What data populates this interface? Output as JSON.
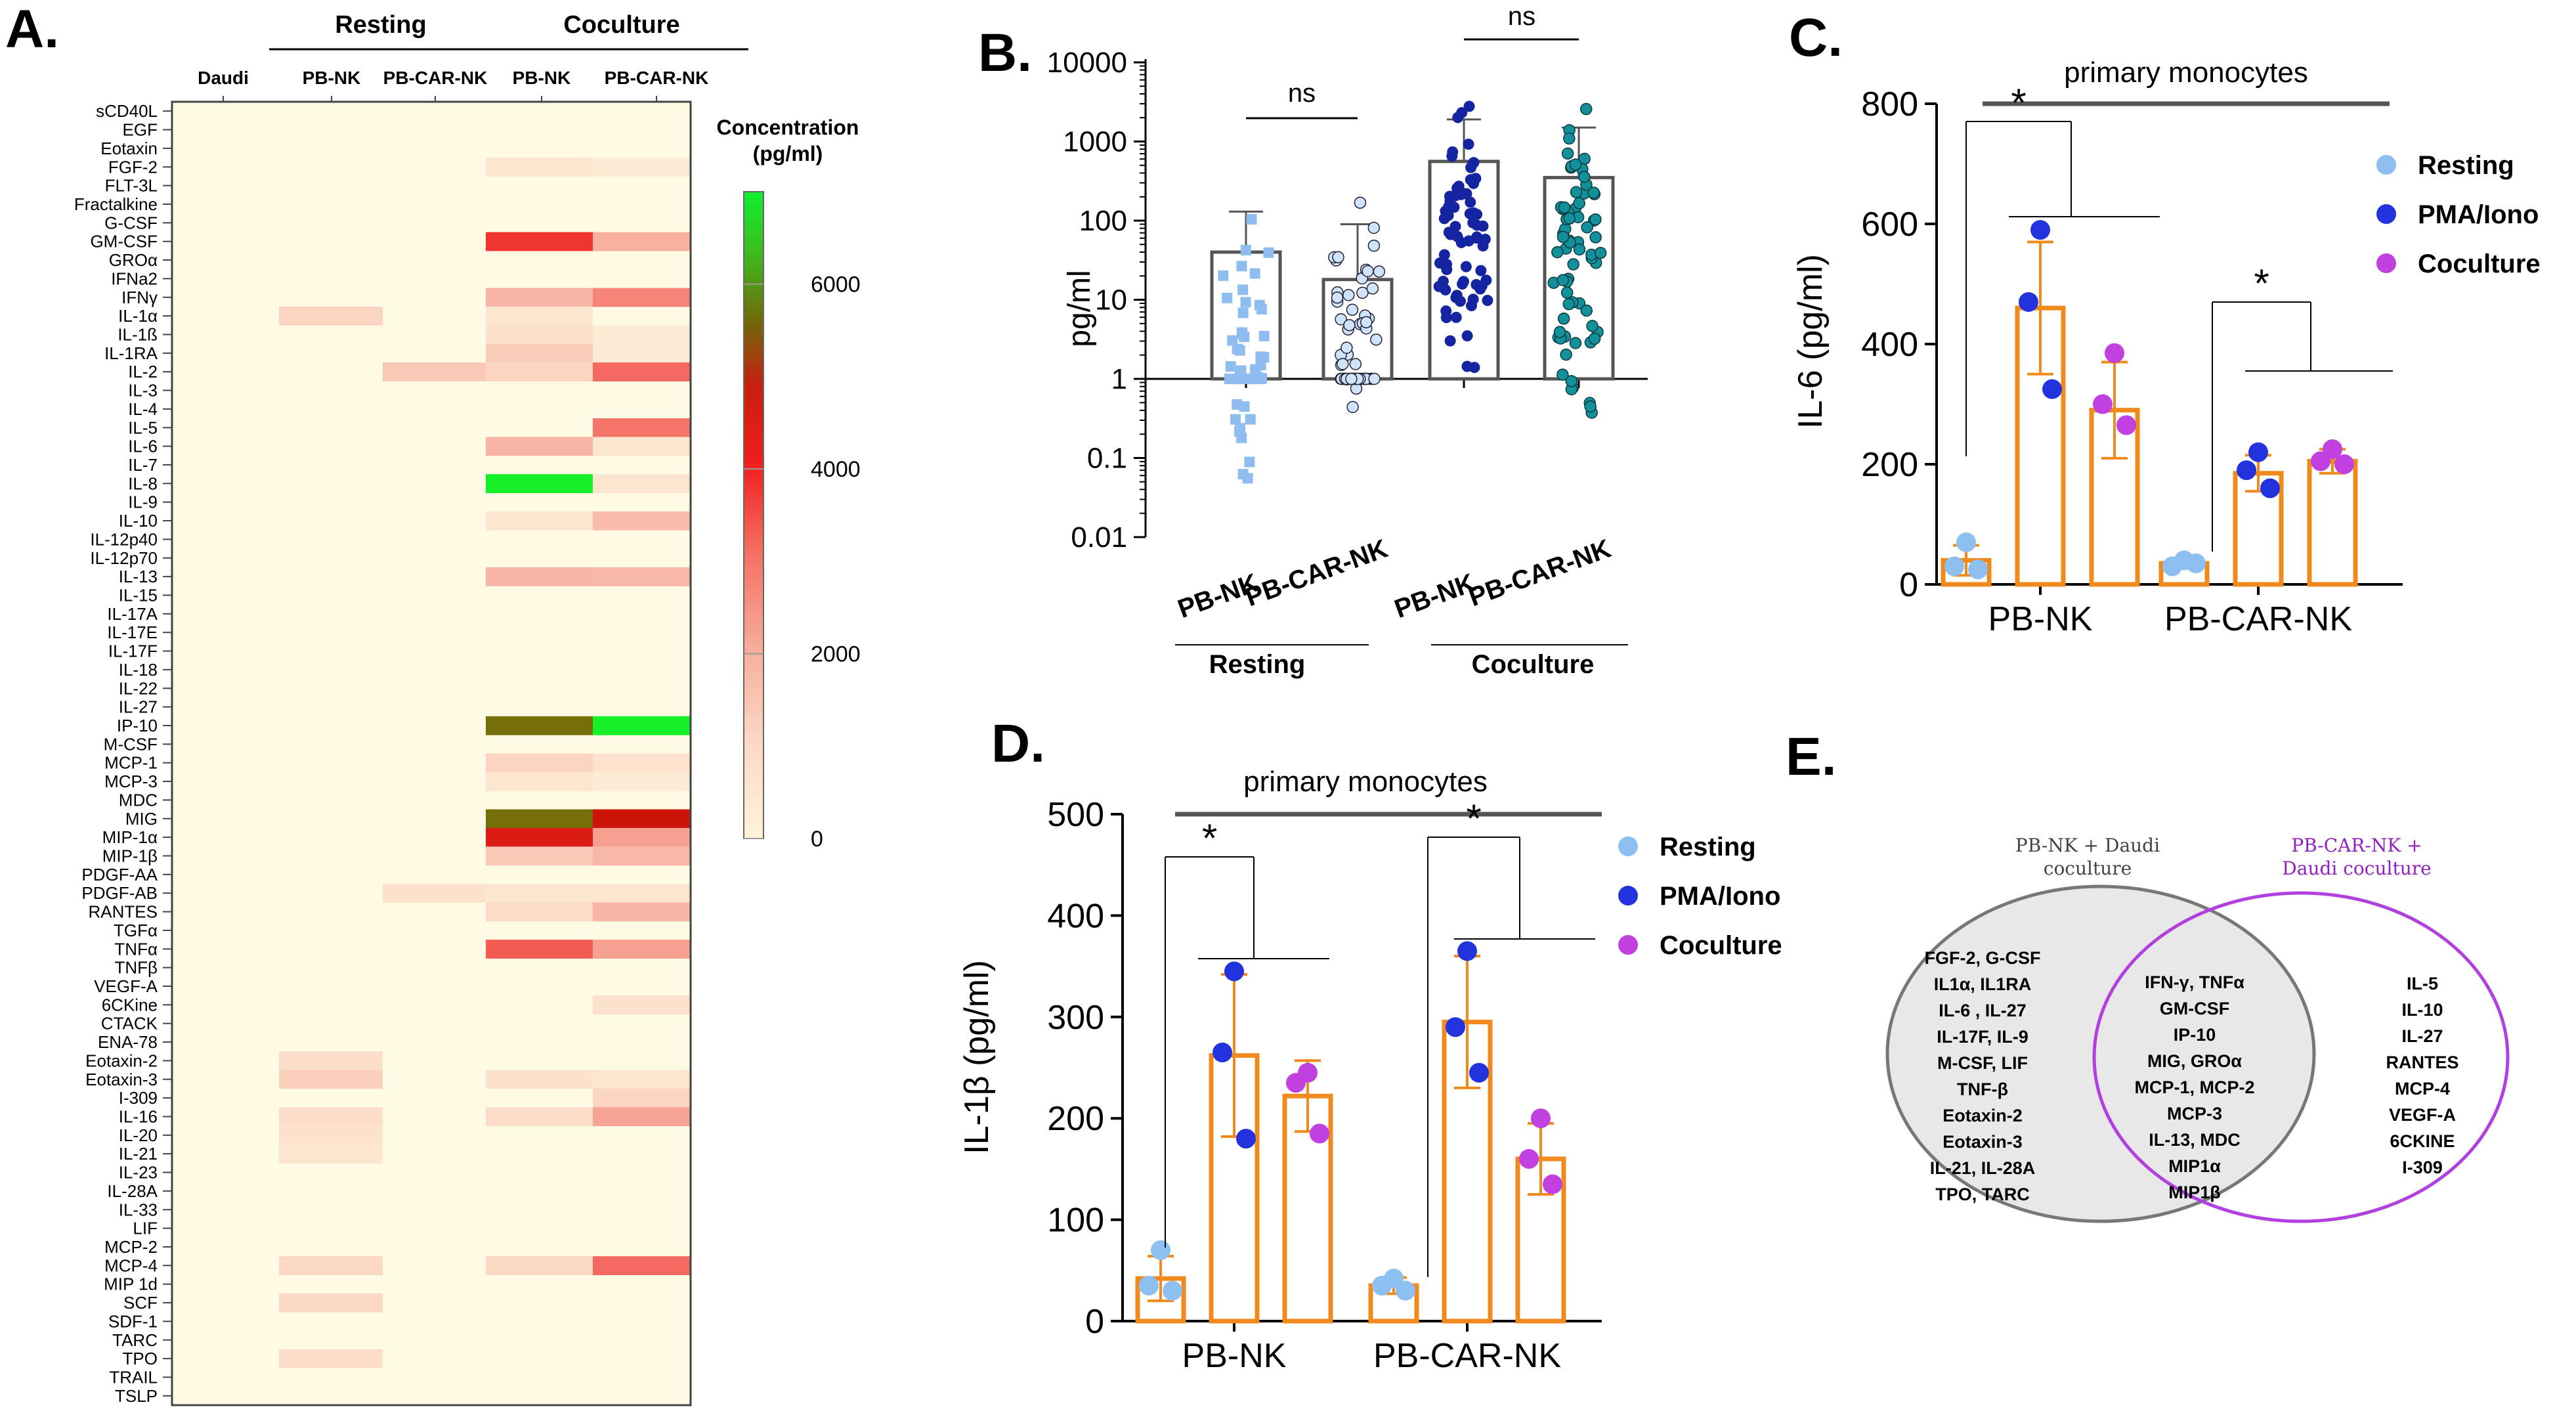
{
  "panel_labels": {
    "a": "A.",
    "b": "B.",
    "c": "C.",
    "d": "D.",
    "e": "E."
  },
  "colors": {
    "resting": "#8dbff0",
    "pma": "#2233dd",
    "coculture": "#c040e0",
    "bar": "#f08a1c",
    "scatter_rest": "#8fbdf0",
    "scatter_coc": "#1524a0",
    "scatter_coc_car": "#13909a",
    "venn_right": "#a020c8"
  },
  "chart_data": [
    {
      "type": "heatmap",
      "panel": "A.",
      "group_labels": [
        "Resting",
        "Coculture"
      ],
      "columns": [
        "Daudi",
        "PB-NK",
        "PB-CAR-NK",
        "PB-NK",
        "PB-CAR-NK"
      ],
      "rows": [
        "sCD40L",
        "EGF",
        "Eotaxin",
        "FGF-2",
        "FLT-3L",
        "Fractalkine",
        "G-CSF",
        "GM-CSF",
        "GROα",
        "IFNa2",
        "IFNγ",
        "IL-1α",
        "IL-1ß",
        "IL-1RA",
        "IL-2",
        "IL-3",
        "IL-4",
        "IL-5",
        "IL-6",
        "IL-7",
        "IL-8",
        "IL-9",
        "IL-10",
        "IL-12p40",
        "IL-12p70",
        "IL-13",
        "IL-15",
        "IL-17A",
        "IL-17E",
        "IL-17F",
        "IL-18",
        "IL-22",
        "IL-27",
        "IP-10",
        "M-CSF",
        "MCP-1",
        "MCP-3",
        "MDC",
        "MIG",
        "MIP-1α",
        "MIP-1β",
        "PDGF-AA",
        "PDGF-AB",
        "RANTES",
        "TGFα",
        "TNFα",
        "TNFβ",
        "VEGF-A",
        "6CKine",
        "CTACK",
        "ENA-78",
        "Eotaxin-2",
        "Eotaxin-3",
        "I-309",
        "IL-16",
        "IL-20",
        "IL-21",
        "IL-23",
        "IL-28A",
        "IL-33",
        "LIF",
        "MCP-2",
        "MCP-4",
        "MIP 1d",
        "SCF",
        "SDF-1",
        "TARC",
        "TPO",
        "TRAIL",
        "TSLP"
      ],
      "values": {
        "GM-CSF": [
          0,
          0,
          0,
          3800,
          1600
        ],
        "FGF-2": [
          0,
          0,
          0,
          300,
          200
        ],
        "IFNγ": [
          0,
          0,
          0,
          1500,
          2500
        ],
        "IL-1α": [
          0,
          700,
          0,
          300,
          0
        ],
        "IL-1ß": [
          0,
          0,
          0,
          400,
          200
        ],
        "IL-1RA": [
          0,
          0,
          0,
          900,
          200
        ],
        "IL-2": [
          0,
          0,
          1000,
          700,
          3000
        ],
        "IL-5": [
          0,
          0,
          0,
          0,
          2800
        ],
        "IL-6": [
          0,
          0,
          0,
          1500,
          300
        ],
        "IL-8": [
          0,
          0,
          0,
          7000,
          300
        ],
        "IL-10": [
          0,
          0,
          0,
          300,
          1300
        ],
        "IL-13": [
          0,
          0,
          0,
          1500,
          1400
        ],
        "IP-10": [
          0,
          0,
          0,
          5500,
          7000
        ],
        "MCP-1": [
          0,
          0,
          0,
          700,
          400
        ],
        "MCP-3": [
          0,
          0,
          0,
          300,
          200
        ],
        "MIG": [
          0,
          0,
          0,
          5500,
          4500
        ],
        "MIP-1α": [
          0,
          0,
          0,
          4300,
          2000
        ],
        "MIP-1β": [
          0,
          0,
          0,
          1000,
          1400
        ],
        "PDGF-AB": [
          0,
          0,
          400,
          300,
          300
        ],
        "RANTES": [
          0,
          0,
          0,
          500,
          1500
        ],
        "TNFα": [
          0,
          0,
          0,
          3200,
          2000
        ],
        "6CKine": [
          0,
          0,
          0,
          0,
          400
        ],
        "Eotaxin-2": [
          0,
          500,
          0,
          0,
          0
        ],
        "Eotaxin-3": [
          0,
          800,
          0,
          400,
          300
        ],
        "I-309": [
          0,
          0,
          0,
          0,
          700
        ],
        "IL-16": [
          0,
          500,
          0,
          500,
          1900
        ],
        "IL-20": [
          0,
          400,
          0,
          0,
          0
        ],
        "IL-21": [
          0,
          300,
          0,
          0,
          0
        ],
        "MCP-4": [
          0,
          600,
          0,
          600,
          3000
        ],
        "SCF": [
          0,
          600,
          0,
          0,
          0
        ],
        "TPO": [
          0,
          500,
          0,
          0,
          0
        ]
      },
      "colorbar": {
        "title": "Concentration (pg/ml)",
        "ticks": [
          0,
          2000,
          4000,
          6000
        ],
        "range": [
          0,
          7000
        ]
      }
    },
    {
      "type": "scatter",
      "panel": "B.",
      "yscale": "log",
      "ylabel": "pg/ml",
      "yticks": [
        "0.01",
        "0.1",
        "1",
        "10",
        "100",
        "1000",
        "10000"
      ],
      "categories": [
        "PB-NK",
        "PB-CAR-NK",
        "PB-NK",
        "PB-CAR-NK"
      ],
      "group_labels": [
        "Resting",
        "Coculture"
      ],
      "bar_means": [
        40,
        18,
        560,
        350
      ],
      "error_upper": [
        130,
        90,
        1900,
        1500
      ],
      "comparisons": [
        "ns",
        "ns"
      ]
    },
    {
      "type": "bar",
      "panel": "C.",
      "title": "primary monocytes",
      "ylabel": "IL-6 (pg/ml)",
      "ylim": [
        0,
        800
      ],
      "yticks": [
        "0",
        "200",
        "400",
        "600",
        "800"
      ],
      "categories": [
        "PB-NK",
        "PB-CAR-NK"
      ],
      "series": [
        {
          "name": "Resting",
          "values": [
            40,
            35
          ],
          "errors": [
            25,
            5
          ],
          "points": [
            [
              70,
              30,
              25
            ],
            [
              40,
              30,
              35
            ]
          ]
        },
        {
          "name": "PMA/Iono",
          "values": [
            460,
            185
          ],
          "errors": [
            110,
            30
          ],
          "points": [
            [
              590,
              470,
              325
            ],
            [
              220,
              190,
              160
            ]
          ]
        },
        {
          "name": "Coculture",
          "values": [
            290,
            205
          ],
          "errors": [
            80,
            20
          ],
          "points": [
            [
              385,
              300,
              265
            ],
            [
              225,
              205,
              200
            ]
          ]
        }
      ],
      "significance": [
        "*",
        "*"
      ]
    },
    {
      "type": "bar",
      "panel": "D.",
      "title": "primary monocytes",
      "ylabel": "IL-1β (pg/ml)",
      "ylim": [
        0,
        500
      ],
      "yticks": [
        "0",
        "100",
        "200",
        "300",
        "400",
        "500"
      ],
      "categories": [
        "PB-NK",
        "PB-CAR-NK"
      ],
      "series": [
        {
          "name": "Resting",
          "values": [
            42,
            35
          ],
          "errors": [
            22,
            8
          ],
          "points": [
            [
              70,
              35,
              30
            ],
            [
              42,
              35,
              30
            ]
          ]
        },
        {
          "name": "PMA/Iono",
          "values": [
            262,
            295
          ],
          "errors": [
            80,
            65
          ],
          "points": [
            [
              345,
              265,
              180
            ],
            [
              365,
              290,
              245
            ]
          ]
        },
        {
          "name": "Coculture",
          "values": [
            222,
            160
          ],
          "errors": [
            35,
            35
          ],
          "points": [
            [
              245,
              235,
              185
            ],
            [
              200,
              160,
              135
            ]
          ]
        }
      ],
      "significance": [
        "*",
        "*"
      ]
    }
  ],
  "venn": {
    "left_title": [
      "PB-NK + Daudi",
      "coculture"
    ],
    "right_title": [
      "PB-CAR-NK +",
      "Daudi coculture"
    ],
    "left_only": [
      "FGF-2, G-CSF",
      "IL1α, IL1RA",
      "IL-6 , IL-27",
      "IL-17F, IL-9",
      "M-CSF, LIF",
      "TNF-β",
      "Eotaxin-2",
      "Eotaxin-3",
      "IL-21, IL-28A",
      "TPO, TARC"
    ],
    "shared": [
      "IFN-γ, TNFα",
      "GM-CSF",
      "IP-10",
      "MIG, GROα",
      "MCP-1, MCP-2",
      "MCP-3",
      "IL-13, MDC",
      "MIP1α",
      "MIP1β"
    ],
    "right_only": [
      "IL-5",
      "IL-10",
      "IL-27",
      "RANTES",
      "MCP-4",
      "VEGF-A",
      "6CKINE",
      "I-309"
    ]
  }
}
